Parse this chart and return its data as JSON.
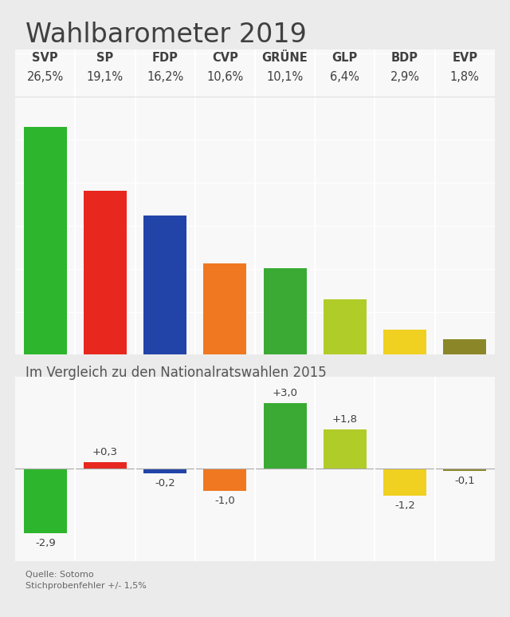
{
  "title": "Wahlbarometer 2019",
  "bg_color": "#ebebeb",
  "chart_bg_color": "#f8f8f8",
  "parties": [
    "SVP",
    "SP",
    "FDP",
    "CVP",
    "GRÜNE",
    "GLP",
    "BDP",
    "EVP"
  ],
  "values": [
    26.5,
    19.1,
    16.2,
    10.6,
    10.1,
    6.4,
    2.9,
    1.8
  ],
  "value_labels": [
    "26,5%",
    "19,1%",
    "16,2%",
    "10,6%",
    "10,1%",
    "6,4%",
    "2,9%",
    "1,8%"
  ],
  "colors": [
    "#2db52d",
    "#e8281e",
    "#2244a8",
    "#f07820",
    "#3aaa35",
    "#b0cc28",
    "#f0d020",
    "#8b8728"
  ],
  "changes": [
    -2.9,
    0.3,
    -0.2,
    -1.0,
    3.0,
    1.8,
    -1.2,
    -0.1
  ],
  "change_labels": [
    "-2,9",
    "+0,3",
    "-0,2",
    "-1,0",
    "+3,0",
    "+1,8",
    "-1,2",
    "-0,1"
  ],
  "subtitle": "Im Vergleich zu den Nationalratswahlen 2015",
  "source_line1": "Quelle: Sotomo",
  "source_line2": "Stichprobenfehler +/- 1,5%",
  "title_fontsize": 24,
  "party_fontsize": 10.5,
  "value_fontsize": 10.5,
  "change_label_fontsize": 9.5,
  "subtitle_fontsize": 12,
  "source_fontsize": 8
}
